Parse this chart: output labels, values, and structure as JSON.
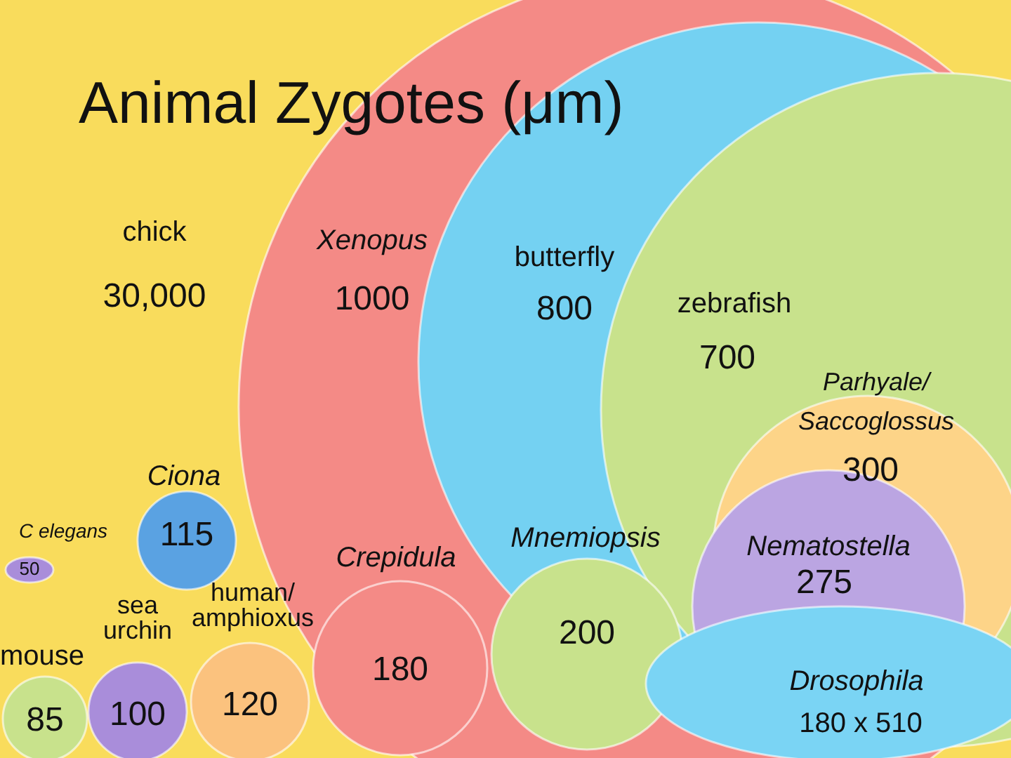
{
  "chart_data": {
    "type": "other",
    "title": "Animal Zygotes (μm)",
    "categories": [
      "chick",
      "Xenopus",
      "butterfly",
      "zebrafish",
      "Parhyale/Saccoglossus",
      "Nematostella",
      "Drosophila",
      "Mnemiopsis",
      "Crepidula",
      "human/amphioxus",
      "Ciona",
      "sea urchin",
      "mouse",
      "C elegans"
    ],
    "values": [
      30000,
      1000,
      800,
      700,
      300,
      275,
      null,
      200,
      180,
      120,
      115,
      100,
      85,
      50
    ],
    "value_labels": [
      "30,000",
      "1000",
      "800",
      "700",
      "300",
      "275",
      "180 x 510",
      "200",
      "180",
      "120",
      "115",
      "100",
      "85",
      "50"
    ],
    "colors": [
      "#f9dc5c",
      "#f48a86",
      "#74d1f2",
      "#c8e28c",
      "#fdd488",
      "#bba5e2",
      "#7ad4f4",
      "#c8e28c",
      "#f48a86",
      "#fbc27e",
      "#5aa2e2",
      "#a98dda",
      "#c8e28c",
      "#a98dda"
    ]
  }
}
